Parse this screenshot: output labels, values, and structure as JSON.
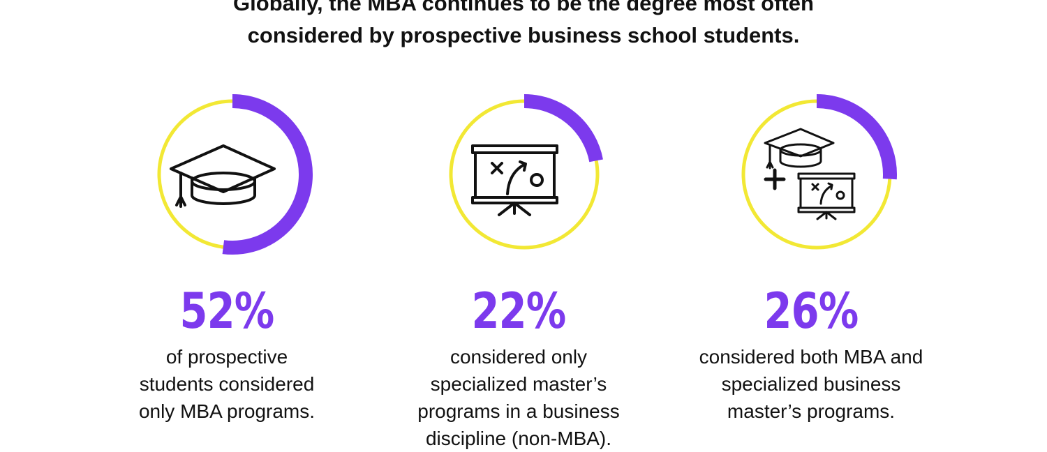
{
  "headline": {
    "line1": "Globally, the MBA continues to be the degree most often",
    "line2": "considered by prospective business school students."
  },
  "colors": {
    "accent": "#7c3aed",
    "ring": "#f2e834",
    "text": "#111111",
    "background": "#ffffff"
  },
  "chart_data": {
    "type": "pie",
    "style": "three progress rings",
    "categories": [
      "of prospective students considered only MBA programs.",
      "considered only specialized master’s programs in a business discipline (non-MBA).",
      "considered both MBA and specialized business master’s programs."
    ],
    "values": [
      52,
      22,
      26
    ],
    "unit": "%"
  },
  "stats": [
    {
      "value": 52,
      "label": "52%",
      "icon": "graduation-cap-icon",
      "desc": [
        "of prospective",
        "students considered",
        "only MBA programs."
      ]
    },
    {
      "value": 22,
      "label": "22%",
      "icon": "strategy-board-icon",
      "desc": [
        "considered only",
        "specialized master’s",
        "programs in a business",
        "discipline (non-MBA)."
      ]
    },
    {
      "value": 26,
      "label": "26%",
      "icon": "cap-plus-board-icon",
      "desc": [
        "considered both MBA and",
        "specialized business",
        "master’s programs."
      ]
    }
  ]
}
